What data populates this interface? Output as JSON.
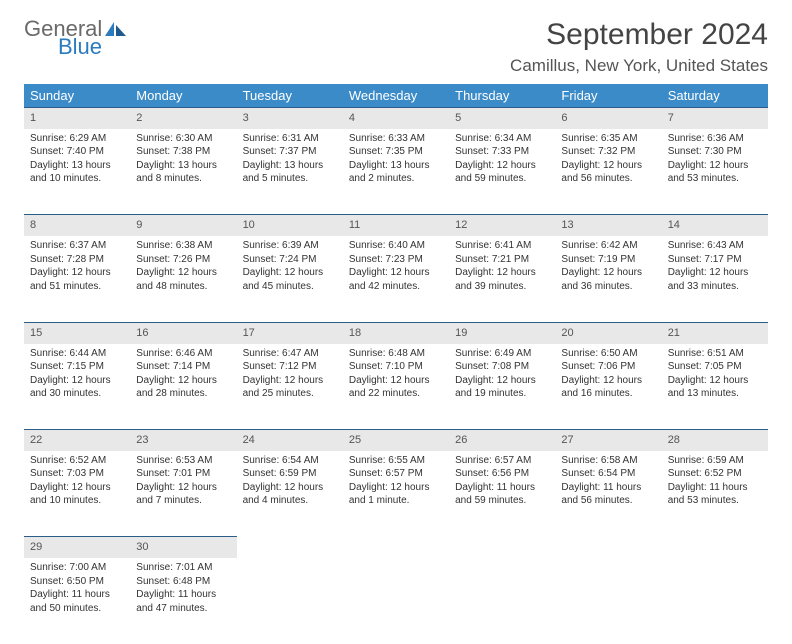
{
  "logo": {
    "part1": "General",
    "part2": "Blue"
  },
  "title": "September 2024",
  "location": "Camillus, New York, United States",
  "colors": {
    "header_bg": "#3b8bc9",
    "daynum_bg": "#e8e8e8",
    "daynum_border": "#2b5d8a",
    "logo_gray": "#6a6a6a",
    "logo_blue": "#2b7bbf"
  },
  "dayNames": [
    "Sunday",
    "Monday",
    "Tuesday",
    "Wednesday",
    "Thursday",
    "Friday",
    "Saturday"
  ],
  "weeks": [
    [
      {
        "n": "1",
        "sr": "6:29 AM",
        "ss": "7:40 PM",
        "dl": "13 hours and 10 minutes."
      },
      {
        "n": "2",
        "sr": "6:30 AM",
        "ss": "7:38 PM",
        "dl": "13 hours and 8 minutes."
      },
      {
        "n": "3",
        "sr": "6:31 AM",
        "ss": "7:37 PM",
        "dl": "13 hours and 5 minutes."
      },
      {
        "n": "4",
        "sr": "6:33 AM",
        "ss": "7:35 PM",
        "dl": "13 hours and 2 minutes."
      },
      {
        "n": "5",
        "sr": "6:34 AM",
        "ss": "7:33 PM",
        "dl": "12 hours and 59 minutes."
      },
      {
        "n": "6",
        "sr": "6:35 AM",
        "ss": "7:32 PM",
        "dl": "12 hours and 56 minutes."
      },
      {
        "n": "7",
        "sr": "6:36 AM",
        "ss": "7:30 PM",
        "dl": "12 hours and 53 minutes."
      }
    ],
    [
      {
        "n": "8",
        "sr": "6:37 AM",
        "ss": "7:28 PM",
        "dl": "12 hours and 51 minutes."
      },
      {
        "n": "9",
        "sr": "6:38 AM",
        "ss": "7:26 PM",
        "dl": "12 hours and 48 minutes."
      },
      {
        "n": "10",
        "sr": "6:39 AM",
        "ss": "7:24 PM",
        "dl": "12 hours and 45 minutes."
      },
      {
        "n": "11",
        "sr": "6:40 AM",
        "ss": "7:23 PM",
        "dl": "12 hours and 42 minutes."
      },
      {
        "n": "12",
        "sr": "6:41 AM",
        "ss": "7:21 PM",
        "dl": "12 hours and 39 minutes."
      },
      {
        "n": "13",
        "sr": "6:42 AM",
        "ss": "7:19 PM",
        "dl": "12 hours and 36 minutes."
      },
      {
        "n": "14",
        "sr": "6:43 AM",
        "ss": "7:17 PM",
        "dl": "12 hours and 33 minutes."
      }
    ],
    [
      {
        "n": "15",
        "sr": "6:44 AM",
        "ss": "7:15 PM",
        "dl": "12 hours and 30 minutes."
      },
      {
        "n": "16",
        "sr": "6:46 AM",
        "ss": "7:14 PM",
        "dl": "12 hours and 28 minutes."
      },
      {
        "n": "17",
        "sr": "6:47 AM",
        "ss": "7:12 PM",
        "dl": "12 hours and 25 minutes."
      },
      {
        "n": "18",
        "sr": "6:48 AM",
        "ss": "7:10 PM",
        "dl": "12 hours and 22 minutes."
      },
      {
        "n": "19",
        "sr": "6:49 AM",
        "ss": "7:08 PM",
        "dl": "12 hours and 19 minutes."
      },
      {
        "n": "20",
        "sr": "6:50 AM",
        "ss": "7:06 PM",
        "dl": "12 hours and 16 minutes."
      },
      {
        "n": "21",
        "sr": "6:51 AM",
        "ss": "7:05 PM",
        "dl": "12 hours and 13 minutes."
      }
    ],
    [
      {
        "n": "22",
        "sr": "6:52 AM",
        "ss": "7:03 PM",
        "dl": "12 hours and 10 minutes."
      },
      {
        "n": "23",
        "sr": "6:53 AM",
        "ss": "7:01 PM",
        "dl": "12 hours and 7 minutes."
      },
      {
        "n": "24",
        "sr": "6:54 AM",
        "ss": "6:59 PM",
        "dl": "12 hours and 4 minutes."
      },
      {
        "n": "25",
        "sr": "6:55 AM",
        "ss": "6:57 PM",
        "dl": "12 hours and 1 minute."
      },
      {
        "n": "26",
        "sr": "6:57 AM",
        "ss": "6:56 PM",
        "dl": "11 hours and 59 minutes."
      },
      {
        "n": "27",
        "sr": "6:58 AM",
        "ss": "6:54 PM",
        "dl": "11 hours and 56 minutes."
      },
      {
        "n": "28",
        "sr": "6:59 AM",
        "ss": "6:52 PM",
        "dl": "11 hours and 53 minutes."
      }
    ],
    [
      {
        "n": "29",
        "sr": "7:00 AM",
        "ss": "6:50 PM",
        "dl": "11 hours and 50 minutes."
      },
      {
        "n": "30",
        "sr": "7:01 AM",
        "ss": "6:48 PM",
        "dl": "11 hours and 47 minutes."
      },
      null,
      null,
      null,
      null,
      null
    ]
  ],
  "labels": {
    "sunrise": "Sunrise:",
    "sunset": "Sunset:",
    "daylight": "Daylight:"
  }
}
